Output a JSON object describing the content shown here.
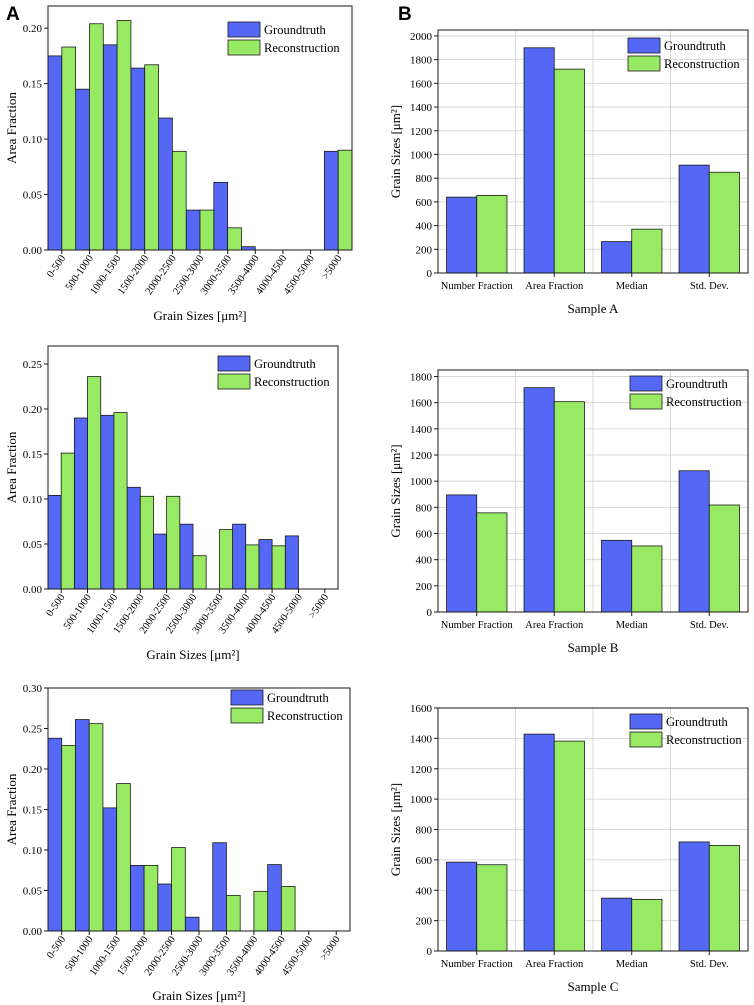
{
  "panel_labels": [
    "A",
    "B"
  ],
  "colors": {
    "groundtruth": "#5468f5",
    "reconstruction": "#98ea64",
    "stroke": "#1a1a1a"
  },
  "chart_data": [
    {
      "type": "bar",
      "id": "dist-a",
      "categories": [
        "0-500",
        "500-1000",
        "1000-1500",
        "1500-2000",
        "2000-2500",
        "2500-3000",
        "3000-3500",
        "3500-4000",
        "4000-4500",
        "4500-5000",
        ">5000"
      ],
      "series": [
        {
          "name": "Groundtruth",
          "values": [
            0.175,
            0.145,
            0.185,
            0.164,
            0.119,
            0.036,
            0.061,
            0.003,
            0,
            0,
            0.089
          ]
        },
        {
          "name": "Reconstruction",
          "values": [
            0.183,
            0.204,
            0.207,
            0.167,
            0.089,
            0.036,
            0.02,
            0,
            0,
            0,
            0.09
          ]
        }
      ],
      "xlabel": "Grain Sizes [μm²]",
      "ylabel": "Area Fraction",
      "ylim": [
        0,
        0.22
      ],
      "ticks": [
        0,
        0.05,
        0.1,
        0.15,
        0.2
      ],
      "tick_labels": [
        "0.00",
        "0.05",
        "0.10",
        "0.15",
        "0.20"
      ],
      "legend": "top-right",
      "grid": false
    },
    {
      "type": "bar",
      "id": "stats-a",
      "categories": [
        "Number Fraction",
        "Area Fraction",
        "Median",
        "Std. Dev."
      ],
      "series": [
        {
          "name": "Groundtruth",
          "values": [
            640,
            1900,
            265,
            910
          ]
        },
        {
          "name": "Reconstruction",
          "values": [
            655,
            1720,
            370,
            850
          ]
        }
      ],
      "xlabel": "Sample A",
      "ylabel": "Grain Sizes [μm²]",
      "ylim": [
        0,
        2050
      ],
      "ticks": [
        0,
        200,
        400,
        600,
        800,
        1000,
        1200,
        1400,
        1600,
        1800,
        2000
      ],
      "tick_labels": [
        "0",
        "200",
        "400",
        "600",
        "800",
        "1000",
        "1200",
        "1400",
        "1600",
        "1800",
        "2000"
      ],
      "legend": "top-right",
      "grid": true
    },
    {
      "type": "bar",
      "id": "dist-b",
      "categories": [
        "0-500",
        "500-1000",
        "1000-1500",
        "1500-2000",
        "2000-2500",
        "2500-3000",
        "3000-3500",
        "3500-4000",
        "4000-4500",
        "4500-5000",
        ">5000"
      ],
      "series": [
        {
          "name": "Groundtruth",
          "values": [
            0.104,
            0.19,
            0.193,
            0.113,
            0.061,
            0.072,
            0,
            0.072,
            0.055,
            0.059,
            0
          ]
        },
        {
          "name": "Reconstruction",
          "values": [
            0.151,
            0.236,
            0.196,
            0.103,
            0.103,
            0.037,
            0.066,
            0.049,
            0.048,
            0,
            0
          ]
        }
      ],
      "xlabel": "Grain Sizes [μm²]",
      "ylabel": "Area Fraction",
      "ylim": [
        0,
        0.27
      ],
      "ticks": [
        0,
        0.05,
        0.1,
        0.15,
        0.2,
        0.25
      ],
      "tick_labels": [
        "0.00",
        "0.05",
        "0.10",
        "0.15",
        "0.20",
        "0.25"
      ],
      "legend": "top-right",
      "grid": false
    },
    {
      "type": "bar",
      "id": "stats-b",
      "categories": [
        "Number Fraction",
        "Area Fraction",
        "Median",
        "Std. Dev."
      ],
      "series": [
        {
          "name": "Groundtruth",
          "values": [
            895,
            1715,
            548,
            1080
          ]
        },
        {
          "name": "Reconstruction",
          "values": [
            758,
            1608,
            505,
            818
          ]
        }
      ],
      "xlabel": "Sample B",
      "ylabel": "Grain Sizes [μm²]",
      "ylim": [
        0,
        1850
      ],
      "ticks": [
        0,
        200,
        400,
        600,
        800,
        1000,
        1200,
        1400,
        1600,
        1800
      ],
      "tick_labels": [
        "0",
        "200",
        "400",
        "600",
        "800",
        "1000",
        "1200",
        "1400",
        "1600",
        "1800"
      ],
      "legend": "top-right",
      "grid": true
    },
    {
      "type": "bar",
      "id": "dist-c",
      "categories": [
        "0-500",
        "500-1000",
        "1000-1500",
        "1500-2000",
        "2000-2500",
        "2500-3000",
        "3000-3500",
        "3500-4000",
        "4000-4500",
        "4500-5000",
        ">5000"
      ],
      "series": [
        {
          "name": "Groundtruth",
          "values": [
            0.238,
            0.261,
            0.152,
            0.081,
            0.058,
            0.017,
            0.109,
            0,
            0.082,
            0,
            0
          ]
        },
        {
          "name": "Reconstruction",
          "values": [
            0.229,
            0.256,
            0.182,
            0.081,
            0.103,
            0,
            0.044,
            0.049,
            0.055,
            0,
            0
          ]
        }
      ],
      "xlabel": "Grain Sizes [μm²]",
      "ylabel": "Area Fraction",
      "ylim": [
        0,
        0.3
      ],
      "ticks": [
        0,
        0.05,
        0.1,
        0.15,
        0.2,
        0.25,
        0.3
      ],
      "tick_labels": [
        "0.00",
        "0.05",
        "0.10",
        "0.15",
        "0.20",
        "0.25",
        "0.30"
      ],
      "legend": "top-right",
      "grid": false
    },
    {
      "type": "bar",
      "id": "stats-c",
      "categories": [
        "Number Fraction",
        "Area Fraction",
        "Median",
        "Std. Dev."
      ],
      "series": [
        {
          "name": "Groundtruth",
          "values": [
            585,
            1428,
            348,
            718
          ]
        },
        {
          "name": "Reconstruction",
          "values": [
            568,
            1382,
            340,
            695
          ]
        }
      ],
      "xlabel": "Sample C",
      "ylabel": "Grain Sizes [μm²]",
      "ylim": [
        0,
        1600
      ],
      "ticks": [
        0,
        200,
        400,
        600,
        800,
        1000,
        1200,
        1400,
        1600
      ],
      "tick_labels": [
        "0",
        "200",
        "400",
        "600",
        "800",
        "1000",
        "1200",
        "1400",
        "1600"
      ],
      "legend": "top-right",
      "grid": true
    }
  ]
}
